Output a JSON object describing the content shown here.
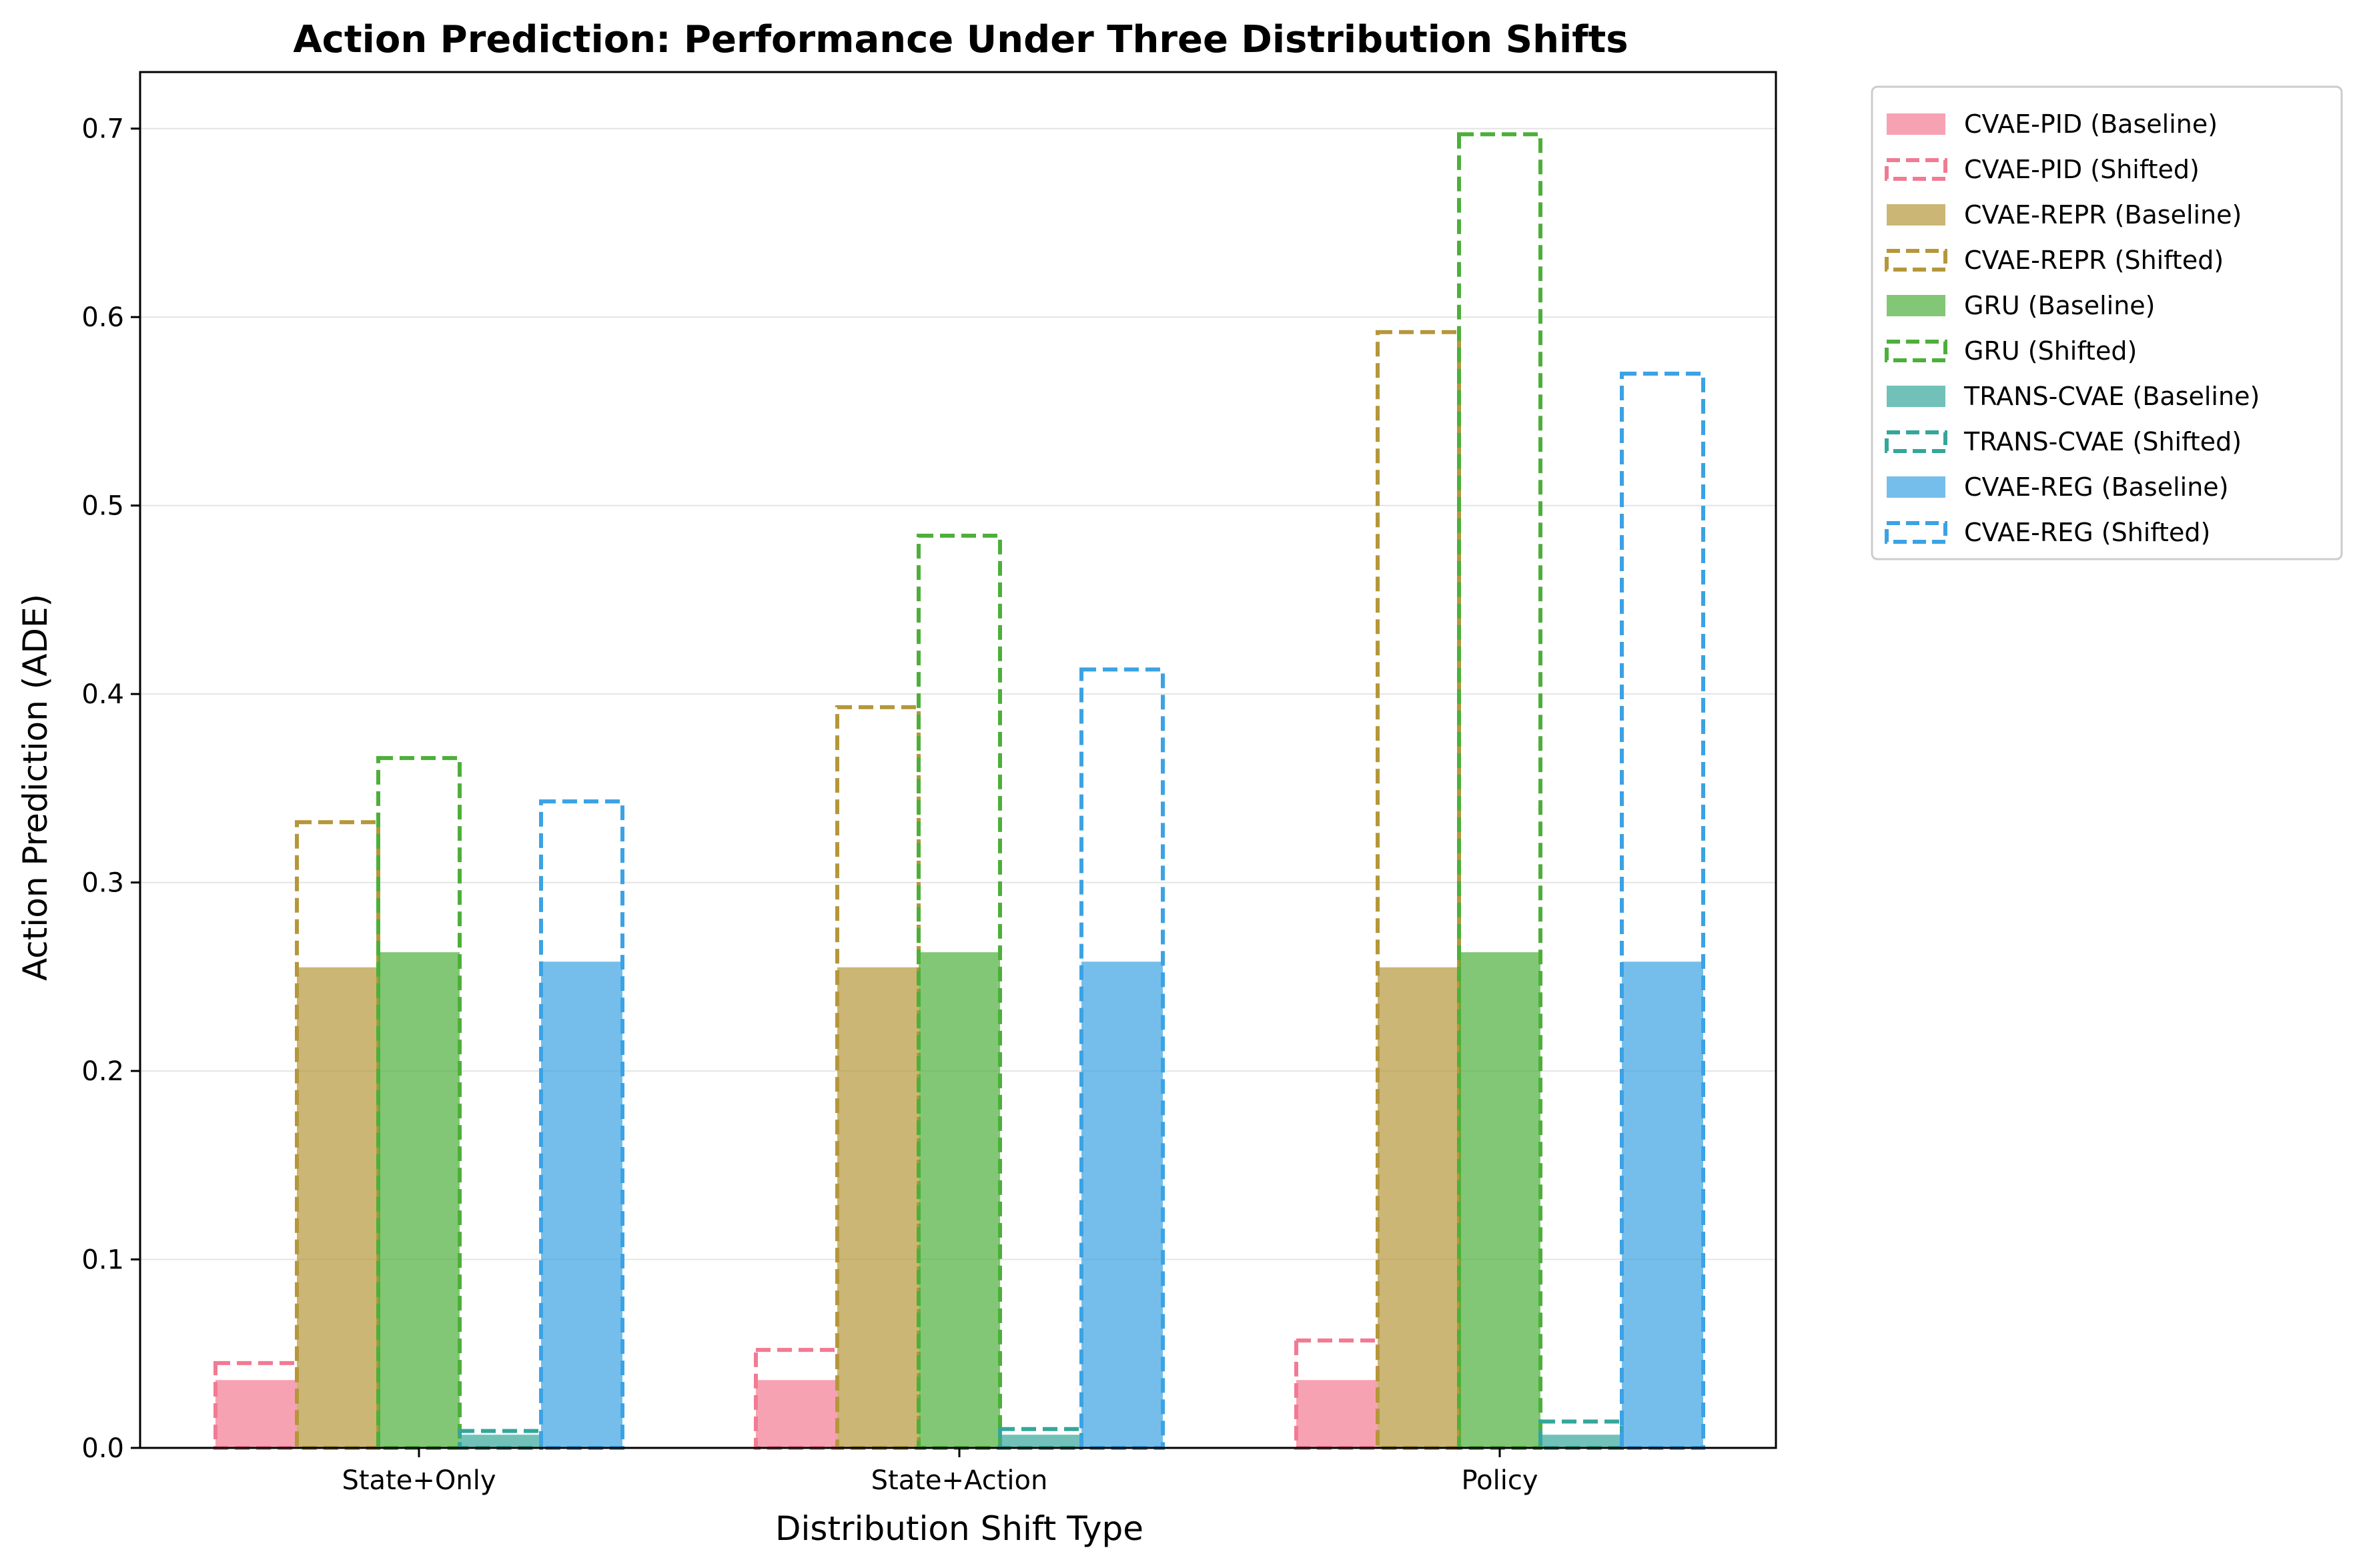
{
  "chart_data": {
    "type": "bar",
    "title": "Action Prediction: Performance Under Three Distribution Shifts",
    "xlabel": "Distribution Shift Type",
    "ylabel": "Action Prediction (ADE)",
    "categories": [
      "State+Only",
      "State+Action",
      "Policy"
    ],
    "ylim": [
      0,
      0.73
    ],
    "yticks": [
      "0.0",
      "0.1",
      "0.2",
      "0.3",
      "0.4",
      "0.5",
      "0.6",
      "0.7"
    ],
    "grid": "horizontal",
    "legend_position": "outside-top-right",
    "models": [
      {
        "color": "#f27a93",
        "baseline": {
          "name": "CVAE-PID (Baseline)",
          "values": [
            0.036,
            0.036,
            0.036
          ]
        },
        "shifted": {
          "name": "CVAE-PID (Shifted)",
          "values": [
            0.045,
            0.052,
            0.057
          ]
        }
      },
      {
        "color": "#b5973a",
        "baseline": {
          "name": "CVAE-REPR (Baseline)",
          "values": [
            0.255,
            0.255,
            0.255
          ]
        },
        "shifted": {
          "name": "CVAE-REPR (Shifted)",
          "values": [
            0.332,
            0.393,
            0.592
          ]
        }
      },
      {
        "color": "#4daf3a",
        "baseline": {
          "name": "GRU (Baseline)",
          "values": [
            0.263,
            0.263,
            0.263
          ]
        },
        "shifted": {
          "name": "GRU (Shifted)",
          "values": [
            0.366,
            0.484,
            0.697
          ]
        }
      },
      {
        "color": "#34a69a",
        "baseline": {
          "name": "TRANS-CVAE (Baseline)",
          "values": [
            0.007,
            0.007,
            0.007
          ]
        },
        "shifted": {
          "name": "TRANS-CVAE (Shifted)",
          "values": [
            0.009,
            0.01,
            0.014
          ]
        }
      },
      {
        "color": "#3ba2e4",
        "baseline": {
          "name": "CVAE-REG (Baseline)",
          "values": [
            0.258,
            0.258,
            0.258
          ]
        },
        "shifted": {
          "name": "CVAE-REG (Shifted)",
          "values": [
            0.343,
            0.413,
            0.57
          ]
        }
      }
    ]
  }
}
